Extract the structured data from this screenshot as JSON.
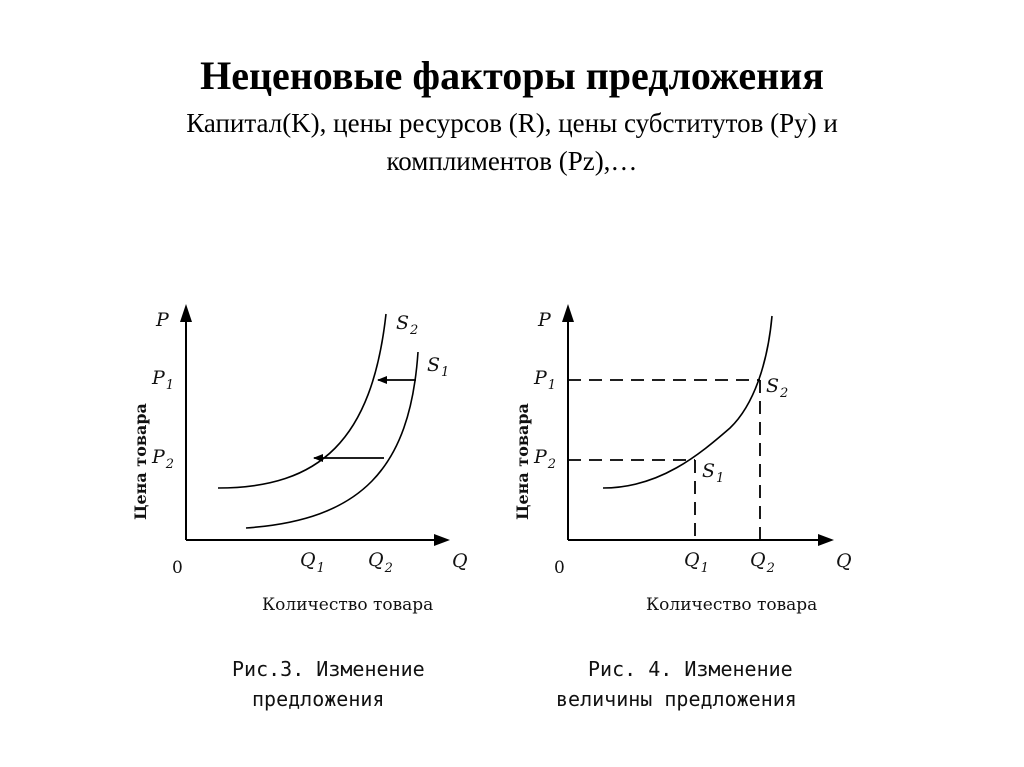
{
  "slide": {
    "title": "Неценовые факторы предложения",
    "subtitle_line1": "Капитал(K), цены ресурсов  (R), цены субститутов (Py) и",
    "subtitle_line2": "комплиментов (Pz),…"
  },
  "chart_data": [
    {
      "type": "line",
      "ylabel": "Цена товара",
      "xlabel": "Количество товара",
      "axis_y_symbol": "P",
      "axis_x_symbol": "Q",
      "origin_label": "0",
      "y_ticks": [
        {
          "main": "P",
          "sub": "1"
        },
        {
          "main": "P",
          "sub": "2"
        }
      ],
      "x_ticks": [
        {
          "main": "Q",
          "sub": "1"
        },
        {
          "main": "Q",
          "sub": "2"
        }
      ],
      "series": [
        {
          "name": "S2",
          "label_main": "S",
          "label_sub": "2"
        },
        {
          "name": "S1",
          "label_main": "S",
          "label_sub": "1"
        }
      ],
      "annotations": [
        "shift arrow at P1: S1 → S2",
        "shift arrow at P2: S1 → S2"
      ],
      "caption_line1": "Рис.3. Изменение",
      "caption_line2": "предложения"
    },
    {
      "type": "line",
      "ylabel": "Цена товара",
      "xlabel": "Количество товара",
      "axis_y_symbol": "P",
      "axis_x_symbol": "Q",
      "origin_label": "0",
      "y_ticks": [
        {
          "main": "P",
          "sub": "1"
        },
        {
          "main": "P",
          "sub": "2"
        }
      ],
      "x_ticks": [
        {
          "main": "Q",
          "sub": "1"
        },
        {
          "main": "Q",
          "sub": "2"
        }
      ],
      "points": [
        {
          "main": "S",
          "sub": "1",
          "at": "(Q1, P2)"
        },
        {
          "main": "S",
          "sub": "2",
          "at": "(Q2, P1)"
        }
      ],
      "caption_line1": "Рис. 4. Изменение",
      "caption_line2": "величины предложения"
    }
  ]
}
